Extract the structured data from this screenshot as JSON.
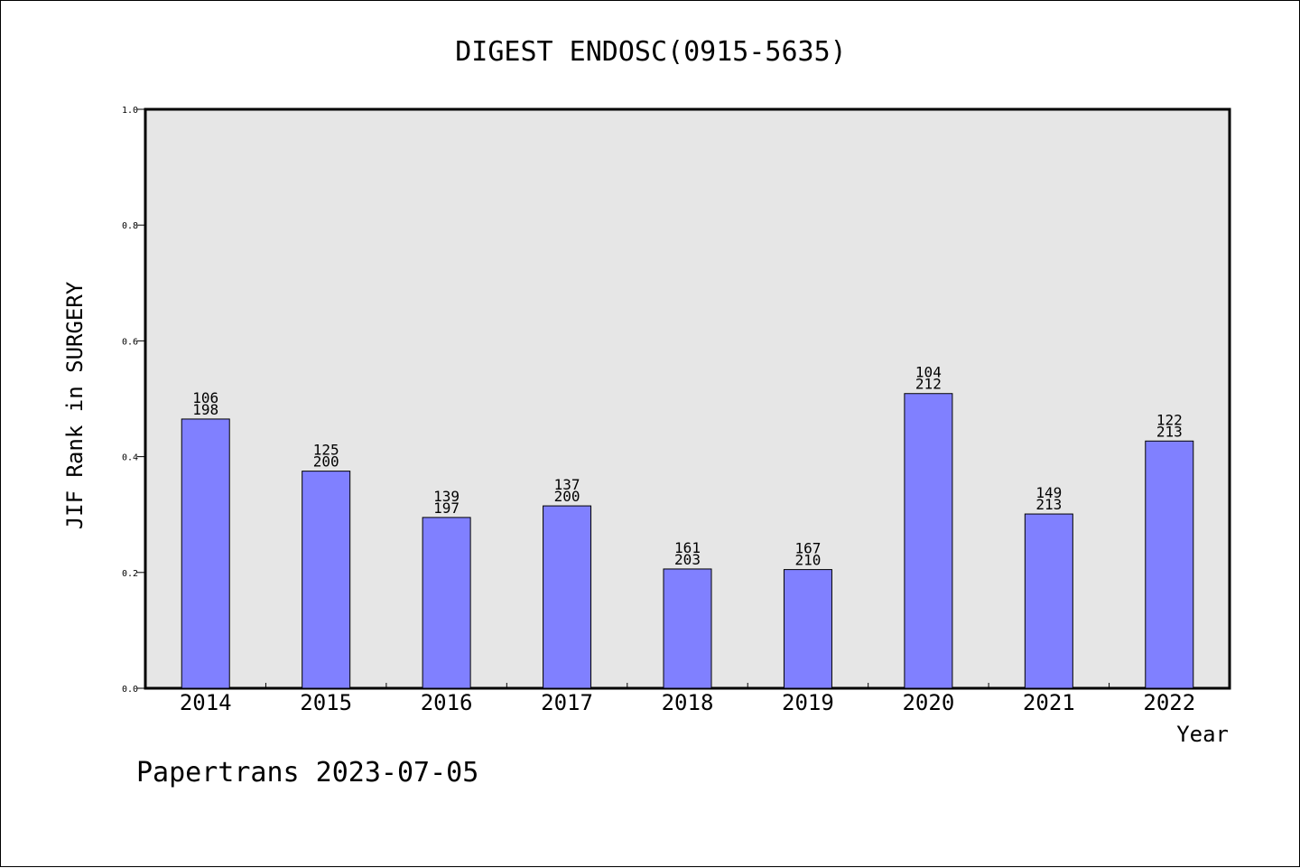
{
  "chart_data": {
    "type": "bar",
    "title": "DIGEST ENDOSC(0915-5635)",
    "xlabel": "Year",
    "ylabel": "JIF Rank in SURGERY",
    "categories": [
      "2014",
      "2015",
      "2016",
      "2017",
      "2018",
      "2019",
      "2020",
      "2021",
      "2022"
    ],
    "values": [
      0.465,
      0.375,
      0.295,
      0.315,
      0.206,
      0.205,
      0.509,
      0.301,
      0.427
    ],
    "bar_labels": [
      [
        "106",
        "198"
      ],
      [
        "125",
        "200"
      ],
      [
        "139",
        "197"
      ],
      [
        "137",
        "200"
      ],
      [
        "161",
        "203"
      ],
      [
        "167",
        "210"
      ],
      [
        "104",
        "212"
      ],
      [
        "149",
        "213"
      ],
      [
        "122",
        "213"
      ]
    ],
    "ylim": [
      0,
      1.0
    ],
    "yticks": [
      "0.0",
      "0.2",
      "0.4",
      "0.6",
      "0.8",
      "1.0"
    ],
    "grid": false,
    "colors": {
      "bar": "#8080ff",
      "plot_background": "#e6e6e6"
    }
  },
  "footer": "Papertrans 2023-07-05"
}
